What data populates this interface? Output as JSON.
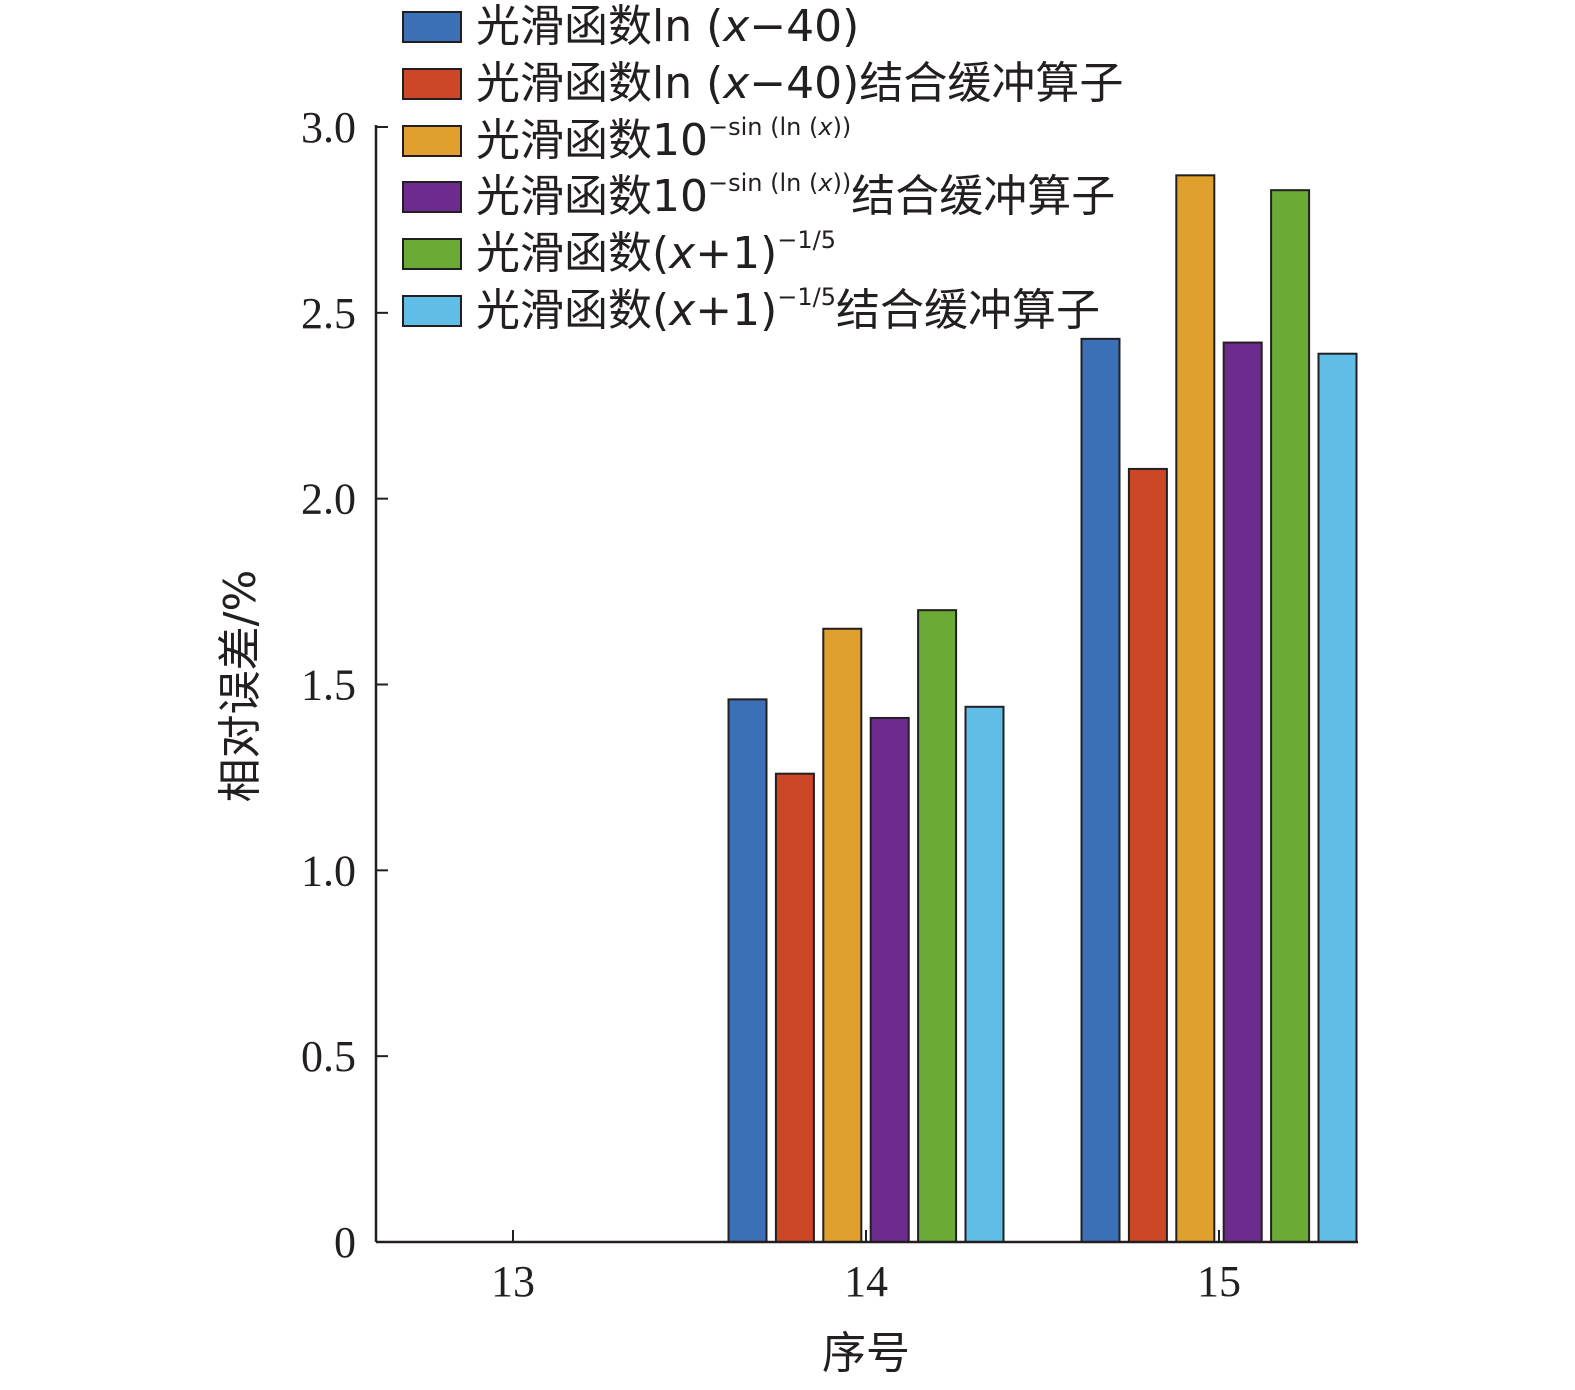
{
  "chart_data": {
    "type": "bar",
    "xlabel": "序号",
    "ylabel": "相对误差/%",
    "categories": [
      "13",
      "14",
      "15"
    ],
    "ylim": [
      0,
      3.0
    ],
    "yticks": [
      0,
      0.5,
      1.0,
      1.5,
      2.0,
      2.5,
      3.0
    ],
    "ytick_labels": [
      "0",
      "0.5",
      "1.0",
      "1.5",
      "2.0",
      "2.5",
      "3.0"
    ],
    "grid": false,
    "legend_position": "top",
    "series": [
      {
        "name": "光滑函数ln (x−40)",
        "color": "#3b6fb6",
        "values": [
          null,
          1.46,
          2.43
        ]
      },
      {
        "name": "光滑函数ln (x−40)结合缓冲算子",
        "color": "#cc4726",
        "values": [
          null,
          1.26,
          2.08
        ]
      },
      {
        "name": "光滑函数10^−sin (ln (x))",
        "color": "#e0a02d",
        "values": [
          null,
          1.65,
          2.87
        ]
      },
      {
        "name": "光滑函数10^−sin (ln (x))结合缓冲算子",
        "color": "#6e2b8e",
        "values": [
          null,
          1.41,
          2.42
        ]
      },
      {
        "name": "光滑函数(x+1)^−1/5",
        "color": "#6aaa35",
        "values": [
          null,
          1.7,
          2.83
        ]
      },
      {
        "name": "光滑函数(x+1)^−1/5结合缓冲算子",
        "color": "#60bde6",
        "values": [
          null,
          1.44,
          2.39
        ]
      }
    ],
    "legend_items": [
      {
        "prefix": "光滑函数",
        "base": "ln (",
        "var": "x",
        "rest": "−40)",
        "sup": "",
        "supvar": "",
        "supend": "",
        "suffix": ""
      },
      {
        "prefix": "光滑函数",
        "base": "ln (",
        "var": "x",
        "rest": "−40)",
        "sup": "",
        "supvar": "",
        "supend": "",
        "suffix": "结合缓冲算子"
      },
      {
        "prefix": "光滑函数",
        "base": "10",
        "var": "",
        "rest": "",
        "sup": "−sin (ln (",
        "supvar": "x",
        "supend": "))",
        "suffix": ""
      },
      {
        "prefix": "光滑函数",
        "base": "10",
        "var": "",
        "rest": "",
        "sup": "−sin (ln (",
        "supvar": "x",
        "supend": "))",
        "suffix": "结合缓冲算子"
      },
      {
        "prefix": "光滑函数",
        "base": "(",
        "var": "x",
        "rest": "+1)",
        "sup": "−1/5",
        "supvar": "",
        "supend": "",
        "suffix": ""
      },
      {
        "prefix": "光滑函数",
        "base": "(",
        "var": "x",
        "rest": "+1)",
        "sup": "−1/5",
        "supvar": "",
        "supend": "",
        "suffix": "结合缓冲算子"
      }
    ]
  }
}
